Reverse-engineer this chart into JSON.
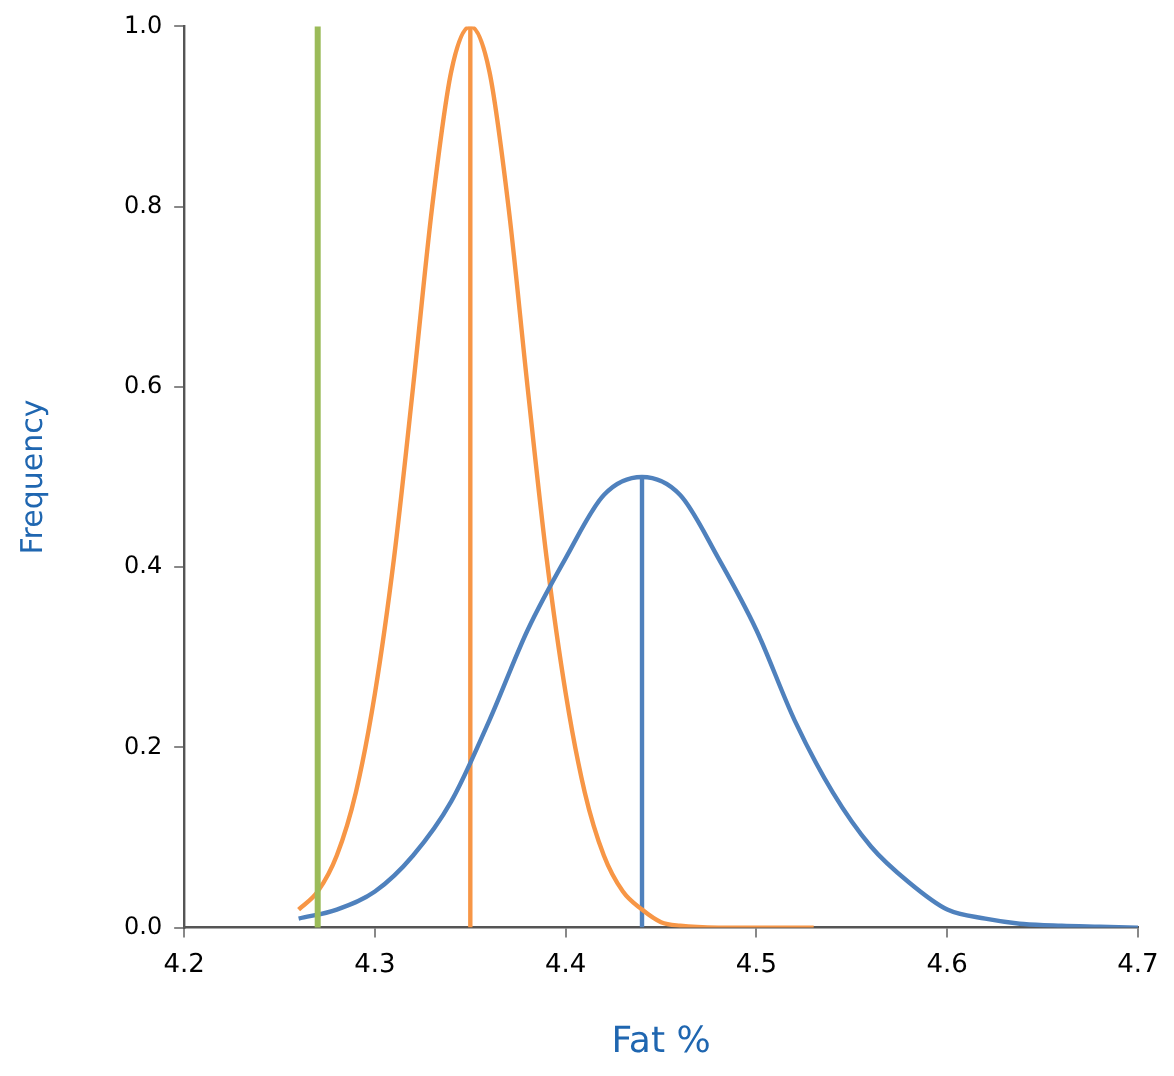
{
  "chart_data": {
    "type": "line",
    "xlabel": "Fat %",
    "ylabel": "Frequency",
    "xlim": [
      4.2,
      4.7
    ],
    "xticks": [
      4.2,
      4.3,
      4.4,
      4.5,
      4.6,
      4.7
    ],
    "ylim": [
      0,
      1
    ],
    "yticks": [
      {
        "value": 0,
        "label": "0.0"
      },
      {
        "value": 0.2,
        "label": "0.2"
      },
      {
        "value": 0.4,
        "label": "0.4"
      },
      {
        "value": 0.6,
        "label": "0.6"
      },
      {
        "value": 0.8,
        "label": "0.8"
      },
      {
        "value": 1,
        "label": "1.0"
      }
    ],
    "grid": false,
    "legend": false,
    "marker": "none",
    "line_style": "solid",
    "series": [
      {
        "color": "#4f81bd",
        "x": [
          4.26,
          4.28,
          4.3,
          4.32,
          4.34,
          4.36,
          4.38,
          4.4,
          4.42,
          4.44,
          4.46,
          4.48,
          4.5,
          4.52,
          4.54,
          4.56,
          4.58,
          4.6,
          4.62,
          4.64,
          4.66,
          4.68,
          4.7
        ],
        "values": [
          0.01,
          0.02,
          0.04,
          0.08,
          0.14,
          0.23,
          0.33,
          0.41,
          0.48,
          0.5,
          0.48,
          0.41,
          0.33,
          0.23,
          0.15,
          0.09,
          0.05,
          0.02,
          0.01,
          0.004,
          0.002,
          0.001,
          0
        ]
      },
      {
        "color": "#f79646",
        "x": [
          4.26,
          4.27,
          4.28,
          4.29,
          4.3,
          4.31,
          4.32,
          4.33,
          4.34,
          4.35,
          4.36,
          4.37,
          4.38,
          4.39,
          4.4,
          4.41,
          4.42,
          4.43,
          4.44,
          4.45,
          4.46,
          4.48,
          4.53
        ],
        "values": [
          0.02,
          0.04,
          0.08,
          0.15,
          0.26,
          0.41,
          0.6,
          0.8,
          0.95,
          1,
          0.95,
          0.8,
          0.6,
          0.41,
          0.26,
          0.15,
          0.08,
          0.04,
          0.02,
          0.006,
          0.002,
          0,
          0
        ]
      },
      {
        "color": "#f79646",
        "x": [
          4.35,
          4.35
        ],
        "values": [
          0,
          1
        ]
      },
      {
        "color": "#4f81bd",
        "x": [
          4.44,
          4.44
        ],
        "values": [
          0,
          0.5
        ]
      }
    ],
    "ref_lines": [
      {
        "axis": "x",
        "value": 4.27,
        "color": "#9bbb59"
      }
    ]
  }
}
